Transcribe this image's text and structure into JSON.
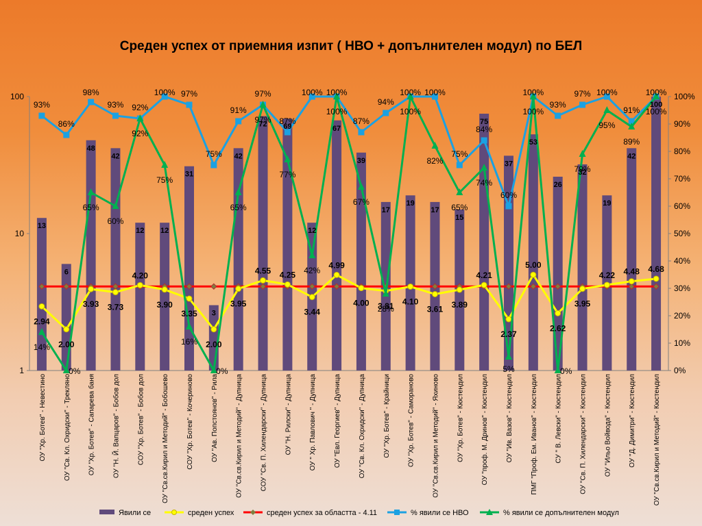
{
  "chart_data": {
    "type": "bar",
    "title": "Среден успех  от приемния изпит ( НВО + допълнителен модул) по БЕЛ",
    "categories": [
      "ОУ \"Хр. Ботев\" - Невестино",
      "ОУ \"Св. Кл. Охридски\" - Трекляно",
      "ОУ \"Хр. Ботев\" - Сапарева баня",
      "ОУ \"Н. Й. Вапцаров\" - Бобов дол",
      "СОУ \"Хр. Ботев\" - Бобов дол",
      "ОУ \"Св.св.Кирил и Методий\" - Бобошево",
      "СОУ \"Хр. Ботев\" - Кочериново",
      "ОУ \"Ав. Попстоянов\" - Рила",
      "ОУ \"Св.св.Кирил и Методий\" - Дупница",
      "СОУ \"Св. П. Хилендарски\" - Дупница",
      "ОУ \"Н. Рилски\" - Дупница",
      "ОУ \" Хр. Павлович \" - Дупница",
      "ОУ \"Евл. Георгиев\" - Дупница",
      "ОУ \"Св. Кл. Охридски\" - Дупница",
      "ОУ \"Хр. Ботев\" - Крайници",
      "ОУ \"Хр. Ботев\" - Самораново",
      "ОУ \"Св.св.Кирил и Методий\" - Яхиново",
      "ОУ \"Хр. Ботев\" - Кюстендил",
      "ОУ \"проф. М. Дринов\" - Кюстендил",
      "ОУ \"Ив. Вазов\" - Кюстендил",
      "ПМГ \"Проф. Ем. Иванов\" - Кюстендил",
      "СУ \" В. Левски\" - Кюстендил",
      "ОУ \"Св. П. Хилендарски\" - Кюстендил",
      "ОУ \"Ильо Войвода\" - Кюстендил",
      "ОУ \"Д. Димитри\" - Кюстендил",
      "ОУ \"Св.св.Кирил и Методий\" - Кюстендил"
    ],
    "series": [
      {
        "name": "Явили се",
        "kind": "bar",
        "axis": "left",
        "color": "#604a7b",
        "values": [
          13,
          6,
          48,
          42,
          12,
          12,
          31,
          3,
          42,
          72,
          69,
          12,
          67,
          39,
          17,
          19,
          17,
          15,
          75,
          37,
          53,
          26,
          32,
          19,
          42,
          100
        ]
      },
      {
        "name": "среден успех",
        "kind": "line",
        "axis": "left",
        "color": "#ffff00",
        "values": [
          2.94,
          2.0,
          3.93,
          3.73,
          4.2,
          3.9,
          3.35,
          2.0,
          3.95,
          4.55,
          4.25,
          3.44,
          4.99,
          4.0,
          3.81,
          4.1,
          3.61,
          3.89,
          4.21,
          2.37,
          5.0,
          2.62,
          3.95,
          4.22,
          4.48,
          4.68
        ],
        "labels": [
          "2.94",
          "2.00",
          "3.93",
          "3.73",
          "4.20",
          "3.90",
          "3.35",
          "2.00",
          "3.95",
          "4.55",
          "4.25",
          "3.44",
          "4.99",
          "4.00",
          "3.81",
          "4.10",
          "3.61",
          "3.89",
          "4.21",
          "2.37",
          "5.00",
          "2.62",
          "3.95",
          "4.22",
          "4.48",
          "4.68"
        ]
      },
      {
        "name": "среден успех за областта - 4.11",
        "kind": "line",
        "axis": "left",
        "color": "#ff0000",
        "values": [
          4.11,
          4.11,
          4.11,
          4.11,
          4.11,
          4.11,
          4.11,
          4.11,
          4.11,
          4.11,
          4.11,
          4.11,
          4.11,
          4.11,
          4.11,
          4.11,
          4.11,
          4.11,
          4.11,
          4.11,
          4.11,
          4.11,
          4.11,
          4.11,
          4.11,
          4.11
        ]
      },
      {
        "name": "% явили се НВО",
        "kind": "line",
        "axis": "right",
        "color": "#1ba1e2",
        "values": [
          93,
          86,
          98,
          93,
          92,
          100,
          97,
          75,
          91,
          97,
          87,
          100,
          100,
          87,
          94,
          100,
          100,
          75,
          84,
          60,
          100,
          93,
          97,
          100,
          91,
          100
        ],
        "labels": [
          "93%",
          "86%",
          "98%",
          "93%",
          "92%",
          "100%",
          "97%",
          "75%",
          "91%",
          "97%",
          "87%",
          "100%",
          "100%",
          "87%",
          "94%",
          "100%",
          "100%",
          "75%",
          "84%",
          "60%",
          "100%",
          "93%",
          "97%",
          "100%",
          "91%",
          "100%"
        ]
      },
      {
        "name": "% явили се допълнителен модул",
        "kind": "line",
        "axis": "right",
        "color": "#00b050",
        "values": [
          14,
          0,
          65,
          60,
          92,
          75,
          16,
          0,
          65,
          97,
          77,
          42,
          100,
          67,
          28,
          100,
          82,
          65,
          74,
          5,
          100,
          0,
          79,
          95,
          89,
          100
        ],
        "labels": [
          "14%",
          "0%",
          "65%",
          "60%",
          "92%",
          "75%",
          "16%",
          "0%",
          "65%",
          "97%",
          "77%",
          "42%",
          "100%",
          "67%",
          "28%",
          "100%",
          "82%",
          "65%",
          "74%",
          "5%",
          "100%",
          "0%",
          "79%",
          "95%",
          "89%",
          "100%"
        ]
      }
    ],
    "y_left": {
      "scale": "log",
      "ylim": [
        1,
        100
      ],
      "ticks": [
        "1",
        "10",
        "100"
      ]
    },
    "y_right": {
      "scale": "linear",
      "ylim": [
        0,
        100
      ],
      "ticks": [
        "0%",
        "10%",
        "20%",
        "30%",
        "40%",
        "50%",
        "60%",
        "70%",
        "80%",
        "90%",
        "100%"
      ]
    },
    "grid": false,
    "legend_position": "bottom"
  }
}
